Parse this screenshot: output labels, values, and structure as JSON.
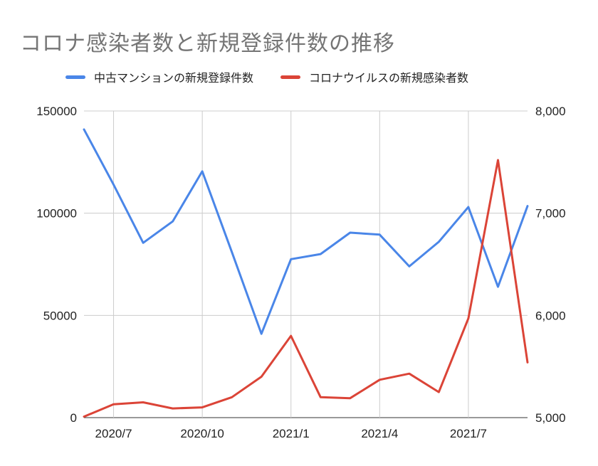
{
  "chart_data": {
    "type": "line",
    "title": "コロナ感染者数と新規登録件数の推移",
    "x": [
      "2020/6",
      "2020/7",
      "2020/8",
      "2020/9",
      "2020/10",
      "2020/11",
      "2020/12",
      "2021/1",
      "2021/2",
      "2021/3",
      "2021/4",
      "2021/5",
      "2021/6",
      "2021/7",
      "2021/8",
      "2021/9"
    ],
    "xticks": [
      "2020/7",
      "2020/10",
      "2021/1",
      "2021/4",
      "2021/7"
    ],
    "series": [
      {
        "name": "中古マンションの新規登録件数",
        "axis": "left",
        "color": "#4a86e8",
        "values": [
          141000,
          114000,
          85500,
          96000,
          120500,
          81000,
          41000,
          77500,
          80000,
          90500,
          89500,
          74000,
          86000,
          103000,
          64000,
          103500
        ]
      },
      {
        "name": "コロナウイルスの新規感染者数",
        "axis": "right",
        "color": "#db4437",
        "values": [
          5010,
          5130,
          5150,
          5090,
          5100,
          5200,
          5400,
          5800,
          5200,
          5190,
          5370,
          5430,
          5250,
          5970,
          7520,
          5540
        ]
      }
    ],
    "y_left": {
      "min": 0,
      "max": 150000,
      "ticks": [
        "0",
        "50000",
        "100000",
        "150000"
      ]
    },
    "y_right": {
      "min": 5000,
      "max": 8000,
      "ticks": [
        "5,000",
        "6,000",
        "7,000",
        "8,000"
      ]
    },
    "grid": true,
    "legend": "top"
  }
}
